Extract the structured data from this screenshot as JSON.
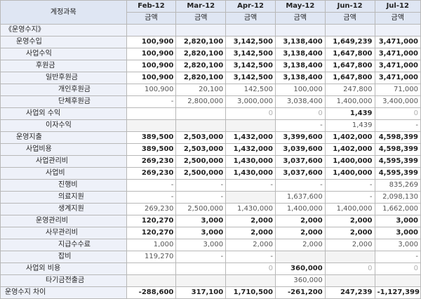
{
  "header": {
    "account_label": "계정과목",
    "months": [
      "Feb-12",
      "Mar-12",
      "Apr-12",
      "May-12",
      "Jun-12",
      "Jul-12"
    ],
    "amount_label": "금액"
  },
  "rows": [
    {
      "label": "《운영수지》",
      "indent": 0,
      "style": "section",
      "values": [
        "",
        "",
        "",
        "",
        "",
        ""
      ]
    },
    {
      "label": "운영수입",
      "indent": 1,
      "style": "bold",
      "values": [
        "100,900",
        "2,820,100",
        "3,142,500",
        "3,138,400",
        "1,649,239",
        "3,471,000"
      ]
    },
    {
      "label": "사업수익",
      "indent": 2,
      "style": "bold",
      "values": [
        "100,900",
        "2,820,100",
        "3,142,500",
        "3,138,400",
        "1,647,800",
        "3,471,000"
      ]
    },
    {
      "label": "후원금",
      "indent": 3,
      "style": "bold",
      "values": [
        "100,900",
        "2,820,100",
        "3,142,500",
        "3,138,400",
        "1,647,800",
        "3,471,000"
      ]
    },
    {
      "label": "일반후원금",
      "indent": 4,
      "style": "bold",
      "values": [
        "100,900",
        "2,820,100",
        "3,142,500",
        "3,138,400",
        "1,647,800",
        "3,471,000"
      ]
    },
    {
      "label": "개인후원금",
      "indent": 5,
      "style": "plain",
      "values": [
        "100,900",
        "20,100",
        "142,500",
        "100,000",
        "247,800",
        "71,000"
      ]
    },
    {
      "label": "단체후원금",
      "indent": 5,
      "style": "plain",
      "values": [
        "-",
        "2,800,000",
        "3,000,000",
        "3,038,400",
        "1,400,000",
        "3,400,000"
      ]
    },
    {
      "label": "사업외 수익",
      "indent": 2,
      "style": "bold",
      "values": [
        "",
        "",
        "0",
        "0",
        "1,439",
        "0"
      ]
    },
    {
      "label": "이자수익",
      "indent": 4,
      "style": "plain",
      "values": [
        "",
        "",
        "",
        "-",
        "1,439",
        "-"
      ]
    },
    {
      "label": "운영지출",
      "indent": 1,
      "style": "bold",
      "values": [
        "389,500",
        "2,503,000",
        "1,432,000",
        "3,399,600",
        "1,402,000",
        "4,598,399"
      ]
    },
    {
      "label": "사업비용",
      "indent": 2,
      "style": "bold",
      "values": [
        "389,500",
        "2,503,000",
        "1,432,000",
        "3,039,600",
        "1,402,000",
        "4,598,399"
      ]
    },
    {
      "label": "사업관리비",
      "indent": 3,
      "style": "bold",
      "values": [
        "269,230",
        "2,500,000",
        "1,430,000",
        "3,037,600",
        "1,400,000",
        "4,595,399"
      ]
    },
    {
      "label": "사업비",
      "indent": 4,
      "style": "bold",
      "values": [
        "269,230",
        "2,500,000",
        "1,430,000",
        "3,037,600",
        "1,400,000",
        "4,595,399"
      ]
    },
    {
      "label": "진행비",
      "indent": 5,
      "style": "plain",
      "values": [
        "-",
        "-",
        "-",
        "-",
        "-",
        "835,269"
      ]
    },
    {
      "label": "의료지원",
      "indent": 5,
      "style": "plain",
      "values": [
        "-",
        "-",
        "",
        "1,637,600",
        "-",
        "2,098,130"
      ]
    },
    {
      "label": "생계지원",
      "indent": 5,
      "style": "plain",
      "values": [
        "269,230",
        "2,500,000",
        "1,430,000",
        "1,400,000",
        "1,400,000",
        "1,662,000"
      ]
    },
    {
      "label": "운영관리비",
      "indent": 3,
      "style": "bold",
      "values": [
        "120,270",
        "3,000",
        "2,000",
        "2,000",
        "2,000",
        "3,000"
      ]
    },
    {
      "label": "사무관리비",
      "indent": 4,
      "style": "bold",
      "values": [
        "120,270",
        "3,000",
        "2,000",
        "2,000",
        "2,000",
        "3,000"
      ]
    },
    {
      "label": "지급수수료",
      "indent": 5,
      "style": "plain",
      "values": [
        "1,000",
        "3,000",
        "2,000",
        "2,000",
        "2,000",
        "3,000"
      ]
    },
    {
      "label": "잡비",
      "indent": 5,
      "style": "plain",
      "values": [
        "119,270",
        "-",
        "-",
        "",
        "",
        "-"
      ]
    },
    {
      "label": "사업외 비용",
      "indent": 2,
      "style": "bold",
      "values": [
        "",
        "",
        "0",
        "360,000",
        "0",
        "0"
      ]
    },
    {
      "label": "타기금전출금",
      "indent": 4,
      "style": "plain",
      "values": [
        "",
        "",
        "",
        "360,000",
        "",
        ""
      ]
    },
    {
      "label": "운영수지 차이",
      "indent": 0,
      "style": "bold",
      "values": [
        "-288,600",
        "317,100",
        "1,710,500",
        "-261,200",
        "247,239",
        "-1,127,399"
      ]
    }
  ]
}
